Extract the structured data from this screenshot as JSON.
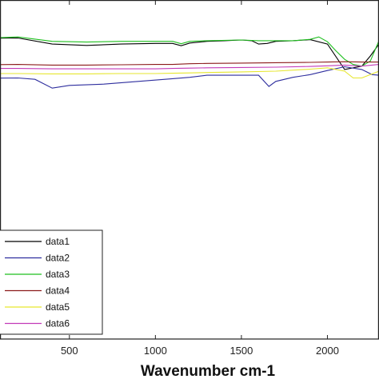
{
  "chart_data": {
    "type": "line",
    "title": "",
    "xlabel": "Wavenumber cm-1",
    "ylabel": "",
    "xlim": [
      50,
      2300
    ],
    "ylim": [
      0,
      1
    ],
    "grid": false,
    "x_ticks": [
      500,
      1000,
      1500,
      2000
    ],
    "legend_position": "bottom-left",
    "series": [
      {
        "name": "data1",
        "color": "#000000",
        "points": [
          [
            0,
            0.887
          ],
          [
            200,
            0.888
          ],
          [
            400,
            0.87
          ],
          [
            600,
            0.866
          ],
          [
            800,
            0.87
          ],
          [
            1000,
            0.872
          ],
          [
            1100,
            0.872
          ],
          [
            1150,
            0.865
          ],
          [
            1200,
            0.873
          ],
          [
            1300,
            0.878
          ],
          [
            1400,
            0.88
          ],
          [
            1500,
            0.882
          ],
          [
            1560,
            0.88
          ],
          [
            1600,
            0.87
          ],
          [
            1650,
            0.872
          ],
          [
            1700,
            0.878
          ],
          [
            1800,
            0.88
          ],
          [
            1900,
            0.883
          ],
          [
            2000,
            0.87
          ],
          [
            2100,
            0.795
          ],
          [
            2200,
            0.805
          ],
          [
            2250,
            0.835
          ],
          [
            2300,
            0.87
          ]
        ]
      },
      {
        "name": "data2",
        "color": "#2e2e9e",
        "points": [
          [
            0,
            0.769
          ],
          [
            200,
            0.77
          ],
          [
            300,
            0.766
          ],
          [
            400,
            0.74
          ],
          [
            500,
            0.748
          ],
          [
            700,
            0.752
          ],
          [
            900,
            0.76
          ],
          [
            1100,
            0.768
          ],
          [
            1200,
            0.772
          ],
          [
            1300,
            0.778
          ],
          [
            1500,
            0.778
          ],
          [
            1600,
            0.778
          ],
          [
            1660,
            0.745
          ],
          [
            1700,
            0.76
          ],
          [
            1800,
            0.772
          ],
          [
            1900,
            0.78
          ],
          [
            2000,
            0.792
          ],
          [
            2100,
            0.803
          ],
          [
            2200,
            0.795
          ],
          [
            2260,
            0.78
          ],
          [
            2300,
            0.778
          ]
        ]
      },
      {
        "name": "data3",
        "color": "#1fbf1f",
        "points": [
          [
            0,
            0.887
          ],
          [
            200,
            0.891
          ],
          [
            400,
            0.878
          ],
          [
            600,
            0.876
          ],
          [
            800,
            0.878
          ],
          [
            1000,
            0.878
          ],
          [
            1100,
            0.878
          ],
          [
            1150,
            0.871
          ],
          [
            1200,
            0.878
          ],
          [
            1300,
            0.88
          ],
          [
            1500,
            0.882
          ],
          [
            1600,
            0.88
          ],
          [
            1700,
            0.88
          ],
          [
            1800,
            0.88
          ],
          [
            1900,
            0.884
          ],
          [
            1950,
            0.891
          ],
          [
            2000,
            0.877
          ],
          [
            2050,
            0.85
          ],
          [
            2100,
            0.825
          ],
          [
            2150,
            0.81
          ],
          [
            2200,
            0.805
          ],
          [
            2250,
            0.82
          ],
          [
            2300,
            0.88
          ]
        ]
      },
      {
        "name": "data4",
        "color": "#8b1a1a",
        "points": [
          [
            0,
            0.809
          ],
          [
            200,
            0.81
          ],
          [
            400,
            0.808
          ],
          [
            600,
            0.808
          ],
          [
            800,
            0.809
          ],
          [
            1000,
            0.81
          ],
          [
            1100,
            0.81
          ],
          [
            1200,
            0.812
          ],
          [
            1300,
            0.813
          ],
          [
            1500,
            0.814
          ],
          [
            1700,
            0.815
          ],
          [
            1900,
            0.816
          ],
          [
            2000,
            0.817
          ],
          [
            2100,
            0.818
          ],
          [
            2200,
            0.817
          ],
          [
            2300,
            0.817
          ]
        ]
      },
      {
        "name": "data5",
        "color": "#e6e62e",
        "points": [
          [
            0,
            0.783
          ],
          [
            200,
            0.783
          ],
          [
            400,
            0.782
          ],
          [
            600,
            0.782
          ],
          [
            800,
            0.783
          ],
          [
            1000,
            0.783
          ],
          [
            1100,
            0.784
          ],
          [
            1200,
            0.785
          ],
          [
            1300,
            0.786
          ],
          [
            1500,
            0.788
          ],
          [
            1700,
            0.79
          ],
          [
            1900,
            0.796
          ],
          [
            2000,
            0.8
          ],
          [
            2100,
            0.79
          ],
          [
            2150,
            0.77
          ],
          [
            2200,
            0.77
          ],
          [
            2250,
            0.78
          ],
          [
            2300,
            0.79
          ]
        ]
      },
      {
        "name": "data6",
        "color": "#c23ab8",
        "points": [
          [
            0,
            0.798
          ],
          [
            200,
            0.798
          ],
          [
            400,
            0.797
          ],
          [
            600,
            0.797
          ],
          [
            800,
            0.797
          ],
          [
            1000,
            0.797
          ],
          [
            1100,
            0.798
          ],
          [
            1200,
            0.799
          ],
          [
            1300,
            0.8
          ],
          [
            1500,
            0.801
          ],
          [
            1700,
            0.802
          ],
          [
            1900,
            0.804
          ],
          [
            2000,
            0.806
          ],
          [
            2100,
            0.808
          ],
          [
            2200,
            0.805
          ],
          [
            2300,
            0.81
          ]
        ]
      }
    ]
  }
}
